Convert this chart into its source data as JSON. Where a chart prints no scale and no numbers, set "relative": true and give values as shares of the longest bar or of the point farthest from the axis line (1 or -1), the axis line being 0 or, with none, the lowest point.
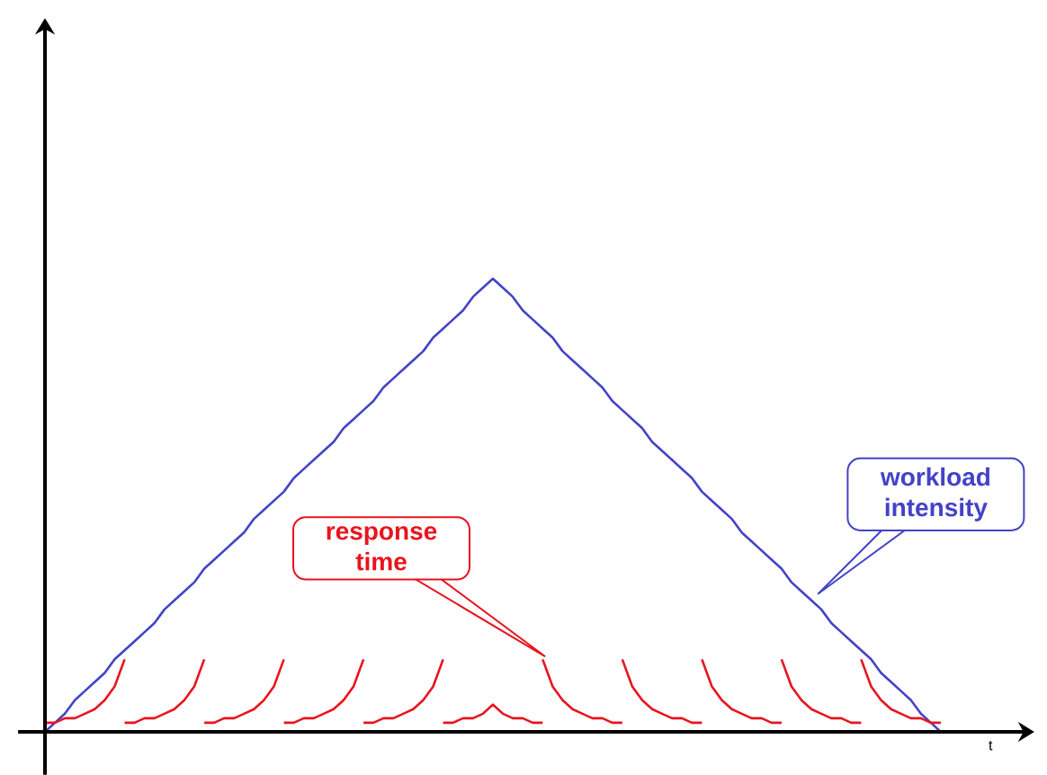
{
  "chart_data": {
    "type": "line",
    "relative": true,
    "xlabel": "t",
    "annotations": [
      "workload intensity",
      "response time"
    ],
    "categories": [
      null,
      null,
      null,
      null,
      null,
      null,
      null,
      null,
      null,
      null,
      null,
      null,
      null,
      null,
      null,
      null,
      null,
      null,
      null,
      null,
      null,
      null,
      null,
      null,
      null,
      null,
      null,
      null,
      null,
      null,
      null,
      null,
      null,
      null,
      null,
      null,
      null,
      null,
      null,
      null,
      null,
      null,
      null,
      null,
      null,
      null,
      null,
      null,
      null,
      null,
      null,
      null,
      null,
      null,
      null,
      null,
      null,
      null,
      null,
      null,
      null,
      null,
      null,
      null,
      null,
      null,
      null,
      null,
      null,
      null,
      null,
      null,
      null,
      null,
      null,
      null,
      null,
      null,
      null,
      null,
      null,
      null,
      null,
      null,
      null,
      null,
      null,
      null,
      null,
      null,
      null
    ],
    "series": [
      {
        "color": "#4343c8",
        "values": [
          0,
          0.02,
          0.04,
          0.07,
          0.09,
          0.11,
          0.13,
          0.16,
          0.18,
          0.2,
          0.22,
          0.24,
          0.27,
          0.29,
          0.31,
          0.33,
          0.36,
          0.38,
          0.4,
          0.42,
          0.44,
          0.47,
          0.49,
          0.51,
          0.53,
          0.56,
          0.58,
          0.6,
          0.62,
          0.64,
          0.67,
          0.69,
          0.71,
          0.73,
          0.76,
          0.78,
          0.8,
          0.82,
          0.84,
          0.87,
          0.89,
          0.91,
          0.93,
          0.96,
          0.98,
          1,
          0.98,
          0.96,
          0.93,
          0.91,
          0.89,
          0.87,
          0.84,
          0.82,
          0.8,
          0.78,
          0.76,
          0.73,
          0.71,
          0.69,
          0.67,
          0.64,
          0.62,
          0.6,
          0.58,
          0.56,
          0.53,
          0.51,
          0.49,
          0.47,
          0.44,
          0.42,
          0.4,
          0.38,
          0.36,
          0.33,
          0.31,
          0.29,
          0.27,
          0.24,
          0.22,
          0.2,
          0.18,
          0.16,
          0.13,
          0.11,
          0.09,
          0.07,
          0.04,
          0.02,
          0
        ]
      },
      {
        "color": "#e8141e",
        "values": [
          0.02,
          0.02,
          0.03,
          0.03,
          0.04,
          0.05,
          0.07,
          0.1,
          0.16,
          null,
          null,
          null,
          null,
          null,
          null,
          null,
          0.02,
          0.02,
          0.03,
          0.03,
          0.04,
          0.05,
          0.07,
          0.1,
          0.16,
          null,
          null,
          null,
          null,
          null,
          null,
          null,
          0.02,
          0.02,
          0.03,
          0.03,
          0.04,
          0.05,
          0.07,
          0.1,
          0.16,
          null,
          null,
          null,
          null,
          null,
          null,
          null,
          null,
          null,
          0.16,
          0.1,
          0.07,
          0.05,
          0.04,
          0.03,
          0.03,
          0.02,
          0.02,
          null,
          null,
          null,
          null,
          null,
          null,
          null,
          0.16,
          0.1,
          0.07,
          0.05,
          0.04,
          0.03,
          0.03,
          0.02,
          0.02,
          null,
          null,
          null,
          null,
          null,
          null,
          null,
          0.16,
          0.1,
          0.07,
          0.05,
          0.04,
          0.03,
          0.03,
          0.02,
          0.02
        ]
      },
      {
        "color": "#e8141e",
        "values": [
          null,
          null,
          null,
          null,
          null,
          null,
          null,
          null,
          0.02,
          0.02,
          0.03,
          0.03,
          0.04,
          0.05,
          0.07,
          0.1,
          0.16,
          null,
          null,
          null,
          null,
          null,
          null,
          null,
          0.02,
          0.02,
          0.03,
          0.03,
          0.04,
          0.05,
          0.07,
          0.1,
          0.16,
          null,
          null,
          null,
          null,
          null,
          null,
          null,
          0.02,
          0.02,
          0.03,
          0.03,
          0.04,
          0.06,
          0.04,
          0.03,
          0.03,
          0.02,
          0.02,
          null,
          null,
          null,
          null,
          null,
          null,
          null,
          0.16,
          0.1,
          0.07,
          0.05,
          0.04,
          0.03,
          0.03,
          0.02,
          0.02,
          null,
          null,
          null,
          null,
          null,
          null,
          null,
          0.16,
          0.1,
          0.07,
          0.05,
          0.04,
          0.03,
          0.03,
          0.02,
          0.02,
          null,
          null,
          null,
          null,
          null,
          null,
          null,
          null
        ]
      }
    ]
  }
}
